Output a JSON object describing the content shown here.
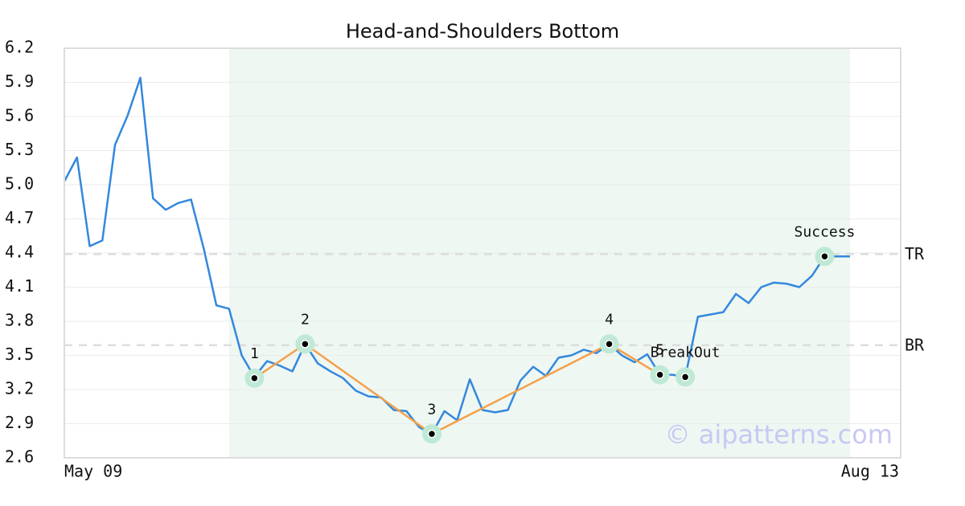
{
  "chart_data": {
    "type": "line",
    "title": "Head-and-Shoulders Bottom",
    "x": [
      0,
      1,
      2,
      3,
      4,
      5,
      6,
      7,
      8,
      9,
      10,
      11,
      12,
      13,
      14,
      15,
      16,
      17,
      18,
      19,
      20,
      21,
      22,
      23,
      24,
      25,
      26,
      27,
      28,
      29,
      30,
      31,
      32,
      33,
      34,
      35,
      36,
      37,
      38,
      39,
      40,
      41,
      42,
      43,
      44,
      45,
      46,
      47,
      48,
      49,
      50,
      51,
      52,
      53,
      54,
      55,
      56,
      57,
      58,
      59,
      60,
      61,
      62
    ],
    "values": [
      5.03,
      5.24,
      4.46,
      4.51,
      5.35,
      5.61,
      5.94,
      4.88,
      4.78,
      4.84,
      4.87,
      4.44,
      3.94,
      3.91,
      3.5,
      3.31,
      3.45,
      3.41,
      3.36,
      3.6,
      3.43,
      3.36,
      3.3,
      3.19,
      3.14,
      3.13,
      3.02,
      3.01,
      2.87,
      2.81,
      3.01,
      2.93,
      3.29,
      3.02,
      3.0,
      3.02,
      3.28,
      3.4,
      3.32,
      3.48,
      3.5,
      3.55,
      3.52,
      3.6,
      3.5,
      3.44,
      3.51,
      3.33,
      3.33,
      3.31,
      3.84,
      3.86,
      3.88,
      4.04,
      3.96,
      4.1,
      4.14,
      4.13,
      4.1,
      4.2,
      4.37,
      4.37,
      4.37
    ],
    "color": "#3388dd",
    "xlim": [
      0,
      66
    ],
    "xticks": [
      {
        "value": 0,
        "label": "May 09"
      },
      {
        "value": 66,
        "label": "Aug 13"
      }
    ],
    "ylim": [
      2.6,
      6.2
    ],
    "yticks": [
      2.6,
      2.9,
      3.2,
      3.5,
      3.8,
      4.1,
      4.4,
      4.7,
      {
        "value": 5,
        "label": "5.0"
      },
      5.3,
      5.6,
      5.9,
      6.2
    ],
    "grid": true,
    "highlight": {
      "x": [
        13,
        62
      ],
      "color": "#eef7f2"
    },
    "pattern_color": "#f5a04a",
    "pattern_points": [
      {
        "label": "1",
        "x": 15,
        "y": 3.3
      },
      {
        "label": "2",
        "x": 19,
        "y": 3.6
      },
      {
        "label": "3",
        "x": 29,
        "y": 2.81
      },
      {
        "label": "4",
        "x": 43,
        "y": 3.6
      },
      {
        "label": "5",
        "x": 47,
        "y": 3.33
      }
    ],
    "event_points": [
      {
        "label": "BreakOut",
        "x": 49,
        "y": 3.31
      },
      {
        "label": "Success",
        "x": 60,
        "y": 4.37
      }
    ],
    "hlines": [
      {
        "label": "TR",
        "value": 4.39
      },
      {
        "label": "BR",
        "value": 3.59
      }
    ],
    "watermark": "© aipatterns.com"
  }
}
